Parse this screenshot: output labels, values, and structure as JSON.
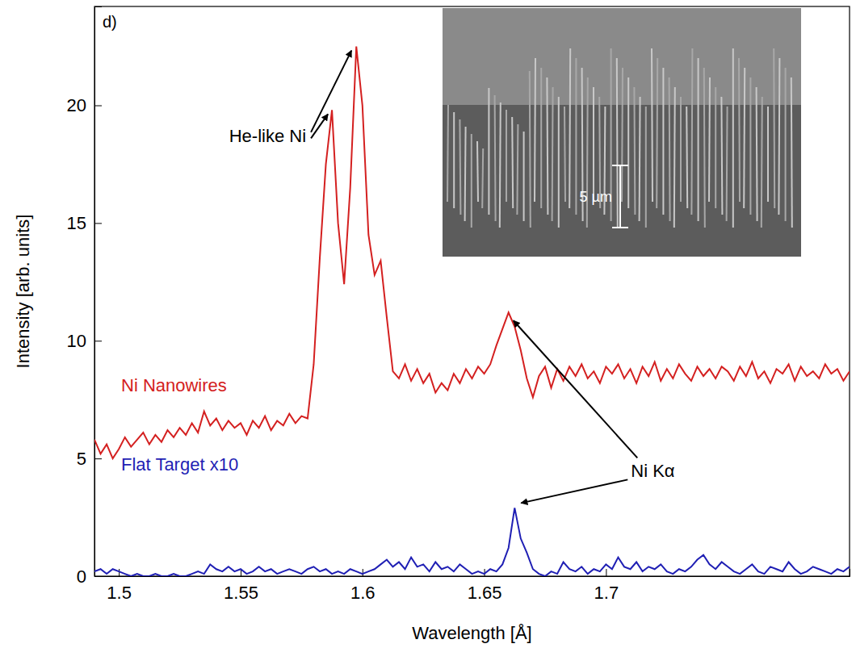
{
  "chart_data": {
    "type": "line",
    "panel_label": "d)",
    "x_label": "Wavelength [Å]",
    "y_label": "Intensity [arb. units]",
    "annotations": [
      "He-like Ni",
      "Ni Kα",
      "5 µm"
    ],
    "xlim": [
      1.49,
      1.8
    ],
    "ylim": [
      0,
      24.2
    ],
    "xticks": [
      1.5,
      1.55,
      1.6,
      1.65,
      1.7
    ],
    "yticks": [
      0,
      5,
      10,
      15,
      20
    ],
    "grid": false,
    "x": [
      1.49,
      1.4925,
      1.495,
      1.4975,
      1.5,
      1.5025,
      1.505,
      1.5075,
      1.51,
      1.5125,
      1.515,
      1.5175,
      1.52,
      1.5225,
      1.525,
      1.5275,
      1.53,
      1.5325,
      1.535,
      1.5375,
      1.54,
      1.5425,
      1.545,
      1.5475,
      1.55,
      1.5525,
      1.555,
      1.5575,
      1.56,
      1.5625,
      1.565,
      1.5675,
      1.57,
      1.5725,
      1.575,
      1.5775,
      1.58,
      1.5825,
      1.585,
      1.5875,
      1.59,
      1.5925,
      1.595,
      1.5975,
      1.6,
      1.6025,
      1.605,
      1.6075,
      1.61,
      1.6125,
      1.615,
      1.6175,
      1.62,
      1.6225,
      1.625,
      1.6275,
      1.63,
      1.6325,
      1.635,
      1.6375,
      1.64,
      1.6425,
      1.645,
      1.6475,
      1.65,
      1.6525,
      1.655,
      1.6575,
      1.66,
      1.6625,
      1.665,
      1.6675,
      1.67,
      1.6725,
      1.675,
      1.6775,
      1.68,
      1.6825,
      1.685,
      1.6875,
      1.69,
      1.6925,
      1.695,
      1.6975,
      1.7,
      1.7025,
      1.705,
      1.7075,
      1.71,
      1.7125,
      1.715,
      1.7175,
      1.72,
      1.7225,
      1.725,
      1.7275,
      1.73,
      1.7325,
      1.735,
      1.7375,
      1.74,
      1.7425,
      1.745,
      1.7475,
      1.75,
      1.7525,
      1.755,
      1.7575,
      1.76,
      1.7625,
      1.765,
      1.7675,
      1.77,
      1.7725,
      1.775,
      1.7775,
      1.78,
      1.7825,
      1.785,
      1.7875,
      1.79,
      1.7925,
      1.795,
      1.7975,
      1.8
    ],
    "series": [
      {
        "name": "Ni Nanowires",
        "color": "#d42020",
        "line_style": "solid",
        "values": [
          5.8,
          5.2,
          5.6,
          5.0,
          5.4,
          5.9,
          5.5,
          5.8,
          6.1,
          5.6,
          6.0,
          5.7,
          6.2,
          5.9,
          6.3,
          6.0,
          6.5,
          6.1,
          7.0,
          6.4,
          6.7,
          6.2,
          6.6,
          6.3,
          6.5,
          6.0,
          6.6,
          6.3,
          6.8,
          6.2,
          6.6,
          6.4,
          6.9,
          6.5,
          6.8,
          6.7,
          9.0,
          13.5,
          17.5,
          19.8,
          15.0,
          12.4,
          16.5,
          22.5,
          20.0,
          14.5,
          12.8,
          13.4,
          11.0,
          8.7,
          8.4,
          9.0,
          8.3,
          8.8,
          8.2,
          8.6,
          7.8,
          8.2,
          7.9,
          8.6,
          8.2,
          8.8,
          8.4,
          8.9,
          8.6,
          9.0,
          9.8,
          10.5,
          11.2,
          10.6,
          9.6,
          8.4,
          7.6,
          8.5,
          8.9,
          8.0,
          8.8,
          8.3,
          8.9,
          8.5,
          9.0,
          8.4,
          8.7,
          8.2,
          8.9,
          8.6,
          9.0,
          8.4,
          8.8,
          8.2,
          8.9,
          8.5,
          9.1,
          8.3,
          8.8,
          8.4,
          9.0,
          8.6,
          8.3,
          8.9,
          8.5,
          8.8,
          8.4,
          8.9,
          8.7,
          8.3,
          8.9,
          8.5,
          9.1,
          8.4,
          8.7,
          8.2,
          8.8,
          8.6,
          9.0,
          8.3,
          8.9,
          8.5,
          8.7,
          8.4,
          9.0,
          8.6,
          8.8,
          8.3,
          8.7
        ]
      },
      {
        "name": "Flat Target x10",
        "color": "#1f1fb4",
        "line_style": "solid",
        "values": [
          0.2,
          0.3,
          0.1,
          0.3,
          0.2,
          0.1,
          0.0,
          0.1,
          0.0,
          0.0,
          0.1,
          0.0,
          0.0,
          0.1,
          0.0,
          0.0,
          0.1,
          0.2,
          0.1,
          0.5,
          0.3,
          0.2,
          0.4,
          0.2,
          0.3,
          0.1,
          0.2,
          0.4,
          0.2,
          0.3,
          0.1,
          0.2,
          0.3,
          0.2,
          0.1,
          0.3,
          0.4,
          0.2,
          0.3,
          0.1,
          0.2,
          0.1,
          0.3,
          0.2,
          0.1,
          0.2,
          0.3,
          0.5,
          0.7,
          0.4,
          0.6,
          0.3,
          0.8,
          0.4,
          0.5,
          0.2,
          0.6,
          0.3,
          0.4,
          0.2,
          0.5,
          0.3,
          0.1,
          0.2,
          0.1,
          0.3,
          0.2,
          0.5,
          1.2,
          2.9,
          1.6,
          1.0,
          0.3,
          0.1,
          0.0,
          0.2,
          0.1,
          0.6,
          0.3,
          0.2,
          0.4,
          0.1,
          0.3,
          0.2,
          0.5,
          0.3,
          0.8,
          0.4,
          0.3,
          0.6,
          0.2,
          0.4,
          0.3,
          0.5,
          0.2,
          0.1,
          0.3,
          0.2,
          0.4,
          0.7,
          0.9,
          0.5,
          0.3,
          0.6,
          0.4,
          0.2,
          0.1,
          0.3,
          0.5,
          0.2,
          0.1,
          0.4,
          0.3,
          0.2,
          0.6,
          0.3,
          0.1,
          0.2,
          0.4,
          0.3,
          0.2,
          0.1,
          0.3,
          0.2,
          0.4
        ]
      }
    ]
  }
}
